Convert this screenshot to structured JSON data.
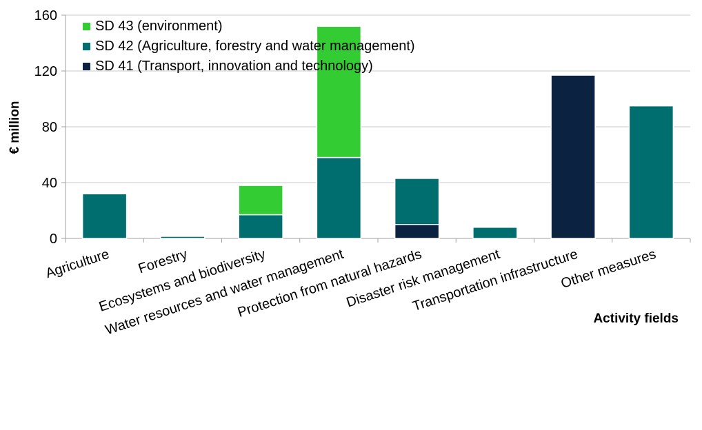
{
  "chart_data": {
    "type": "bar",
    "stacked": true,
    "categories": [
      "Agriculture",
      "Forestry",
      "Ecosystems and biodiversity",
      "Water resources and water management",
      "Protection from natural hazards",
      "Disaster risk management",
      "Transportation infrastructure",
      "Other measures"
    ],
    "series": [
      {
        "name": "SD 41 (Transport, innovation and technology)",
        "color": "#0b2240",
        "values": [
          0,
          0,
          0,
          0,
          10,
          0,
          117,
          0
        ]
      },
      {
        "name": "SD 42 (Agriculture, forestry and water management)",
        "color": "#006e6e",
        "values": [
          32,
          1.5,
          17,
          58,
          33,
          8,
          0,
          95
        ]
      },
      {
        "name": "SD 43 (environment)",
        "color": "#33cc33",
        "values": [
          0,
          0,
          21,
          94,
          0,
          0,
          0,
          0
        ]
      }
    ],
    "legend_order": [
      2,
      1,
      0
    ],
    "ylabel": "€ million",
    "xlabel": "Activity fields",
    "ylim": [
      0,
      160
    ],
    "yticks": [
      0,
      40,
      80,
      120,
      160
    ],
    "grid": true,
    "legend_position": "top-left"
  }
}
